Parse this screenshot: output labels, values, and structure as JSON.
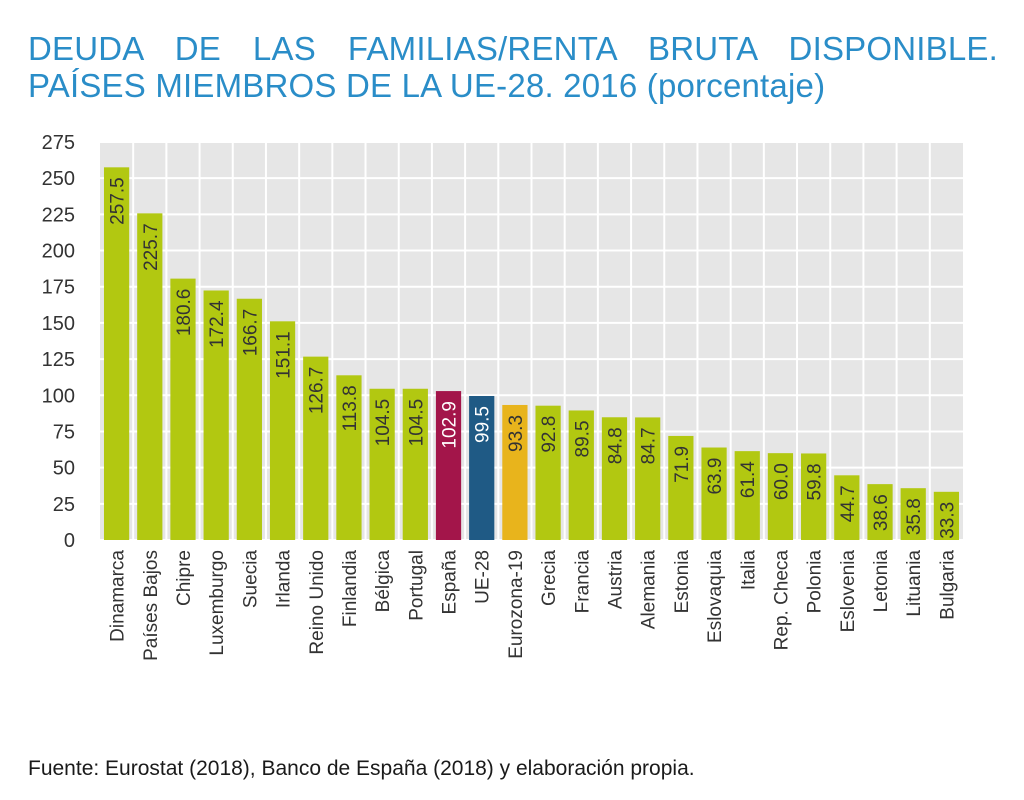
{
  "title": "DEUDA DE LAS FAMILIAS/RENTA BRUTA DISPONIBLE. PAÍSES MIEMBROS DE LA UE-28. 2016 (porcentaje)",
  "source": "Fuente: Eurostat (2018), Banco de España (2018) y elaboración propia.",
  "colors": {
    "default": "#b2c811",
    "highlight_spain": "#a3154a",
    "highlight_eu28": "#1f5a85",
    "highlight_eurozone": "#e8b41c",
    "plot_background": "#e6e6e6",
    "grid": "#ffffff"
  },
  "chart_data": {
    "type": "bar",
    "title": "DEUDA DE LAS FAMILIAS/RENTA BRUTA DISPONIBLE. PAÍSES MIEMBROS DE LA UE-28. 2016 (porcentaje)",
    "xlabel": "",
    "ylabel": "",
    "ylim": [
      0,
      275
    ],
    "yticks": [
      0,
      25,
      50,
      75,
      100,
      125,
      150,
      175,
      200,
      225,
      250,
      275
    ],
    "grid": true,
    "legend": "none",
    "categories": [
      "Dinamarca",
      "Países Bajos",
      "Chipre",
      "Luxemburgo",
      "Suecia",
      "Irlanda",
      "Reino Unido",
      "Finlandia",
      "Bélgica",
      "Portugal",
      "España",
      "UE-28",
      "Eurozona-19",
      "Grecia",
      "Francia",
      "Austria",
      "Alemania",
      "Estonia",
      "Eslovaquia",
      "Italia",
      "Rep. Checa",
      "Polonia",
      "Eslovenia",
      "Letonia",
      "Lituania",
      "Bulgaria"
    ],
    "values": [
      257.5,
      225.7,
      180.6,
      172.4,
      166.7,
      151.1,
      126.7,
      113.8,
      104.5,
      104.5,
      102.9,
      99.5,
      93.3,
      92.8,
      89.5,
      84.8,
      84.7,
      71.9,
      63.9,
      61.4,
      60.0,
      59.8,
      44.7,
      38.6,
      35.8,
      33.3
    ],
    "labels": [
      "257.5",
      "225.7",
      "180.6",
      "172.4",
      "166.7",
      "151.1",
      "126.7",
      "113.8",
      "104.5",
      "104.5",
      "102.9",
      "99.5",
      "93.3",
      "92.8",
      "89.5",
      "84.8",
      "84.7",
      "71.9",
      "63.9",
      "61.4",
      "60.0",
      "59.8",
      "44.7",
      "38.6",
      "35.8",
      "33.3"
    ],
    "highlight": {
      "España": "highlight_spain",
      "UE-28": "highlight_eu28",
      "Eurozona-19": "highlight_eurozone"
    }
  }
}
